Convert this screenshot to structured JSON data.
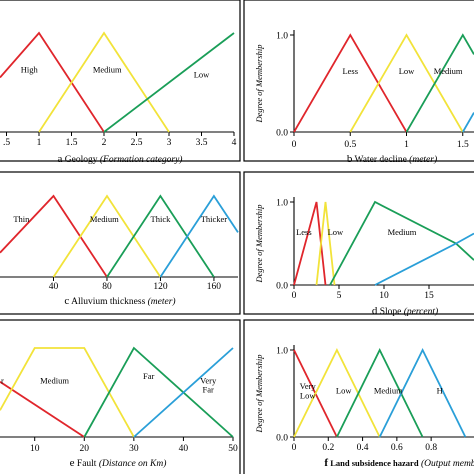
{
  "colors": {
    "red": "#e0262c",
    "yellow": "#f2e33a",
    "green": "#1a9e58",
    "blue": "#2a9fd8"
  },
  "chart_data": [
    {
      "type": "line",
      "panel": "a",
      "caption": "Geology",
      "caption_unit": "(Formation category)",
      "ylabel": "",
      "xlim": [
        0.4,
        4.0
      ],
      "ylim": [
        0,
        1
      ],
      "x_ticks": [
        0.5,
        1,
        1.5,
        2,
        2.5,
        3,
        3.5,
        4
      ],
      "x_tick_labels": [
        ".5",
        "1",
        "1.5",
        "2",
        "2.5",
        "3",
        "3.5",
        "4"
      ],
      "y_ticks": [],
      "series": [
        {
          "name": "High",
          "color": "red",
          "x": [
            0.4,
            1,
            2
          ],
          "y": [
            0.55,
            1,
            0
          ]
        },
        {
          "name": "Medium",
          "color": "yellow",
          "x": [
            1,
            2,
            3
          ],
          "y": [
            0,
            1,
            0
          ]
        },
        {
          "name": "Low",
          "color": "green",
          "x": [
            2,
            4
          ],
          "y": [
            0,
            1
          ]
        }
      ],
      "labels": [
        {
          "text": "High",
          "x": 0.85,
          "y": 0.6
        },
        {
          "text": "Medium",
          "x": 2.05,
          "y": 0.6
        },
        {
          "text": "Low",
          "x": 3.5,
          "y": 0.55
        }
      ]
    },
    {
      "type": "line",
      "panel": "b",
      "caption": "Water decline",
      "caption_unit": "(meter)",
      "ylabel": "Degree of Membership",
      "xlim": [
        0,
        1.6
      ],
      "ylim": [
        0,
        1
      ],
      "x_ticks": [
        0,
        0.5,
        1,
        1.5
      ],
      "x_tick_labels": [
        "0",
        "0.5",
        "1",
        "1.5"
      ],
      "y_ticks": [
        0,
        1
      ],
      "y_tick_labels": [
        "0.0",
        "1.0"
      ],
      "series": [
        {
          "name": "Less",
          "color": "red",
          "x": [
            0,
            0.5,
            1
          ],
          "y": [
            0,
            1,
            0
          ]
        },
        {
          "name": "Low",
          "color": "yellow",
          "x": [
            0.5,
            1,
            1.5
          ],
          "y": [
            0,
            1,
            0
          ]
        },
        {
          "name": "Medium",
          "color": "green",
          "x": [
            1,
            1.5,
            1.6
          ],
          "y": [
            0,
            1,
            0.8
          ]
        },
        {
          "name": "",
          "color": "blue",
          "x": [
            1.5,
            1.6
          ],
          "y": [
            0,
            0.2
          ]
        }
      ],
      "labels": [
        {
          "text": "Less",
          "x": 0.5,
          "y": 0.6
        },
        {
          "text": "Low",
          "x": 1.0,
          "y": 0.6
        },
        {
          "text": "Medium",
          "x": 1.37,
          "y": 0.6
        }
      ]
    },
    {
      "type": "line",
      "panel": "c",
      "caption": "Alluvium thickness",
      "caption_unit": "(meter)",
      "ylabel": "",
      "xlim": [
        0,
        178
      ],
      "ylim": [
        0,
        1
      ],
      "x_ticks": [
        40,
        80,
        120,
        160
      ],
      "x_tick_labels": [
        "40",
        "80",
        "120",
        "160"
      ],
      "y_ticks": [],
      "series": [
        {
          "name": "Thin",
          "color": "red",
          "x": [
            0,
            40,
            80
          ],
          "y": [
            0.3,
            1,
            0
          ]
        },
        {
          "name": "Medium",
          "color": "yellow",
          "x": [
            40,
            80,
            120
          ],
          "y": [
            0,
            1,
            0
          ]
        },
        {
          "name": "Thick",
          "color": "green",
          "x": [
            80,
            120,
            160
          ],
          "y": [
            0,
            1,
            0
          ]
        },
        {
          "name": "Thicker",
          "color": "blue",
          "x": [
            120,
            160,
            178
          ],
          "y": [
            0,
            1,
            0.55
          ]
        }
      ],
      "labels": [
        {
          "text": "Thin",
          "x": 16,
          "y": 0.68
        },
        {
          "text": "Medium",
          "x": 78,
          "y": 0.68
        },
        {
          "text": "Thick",
          "x": 120,
          "y": 0.68
        },
        {
          "text": "Thicker",
          "x": 160,
          "y": 0.68
        }
      ]
    },
    {
      "type": "line",
      "panel": "d",
      "caption": "Slope",
      "caption_unit": "(percent)",
      "ylabel": "Degree of Membership",
      "xlim": [
        0,
        20
      ],
      "ylim": [
        0,
        1
      ],
      "x_ticks": [
        0,
        5,
        10,
        15
      ],
      "x_tick_labels": [
        "0",
        "5",
        "10",
        "15"
      ],
      "y_ticks": [
        0,
        1
      ],
      "y_tick_labels": [
        "0.0",
        "1.0"
      ],
      "series": [
        {
          "name": "Less",
          "color": "red",
          "x": [
            0,
            2.5,
            3.5
          ],
          "y": [
            0,
            1,
            0
          ]
        },
        {
          "name": "Low",
          "color": "yellow",
          "x": [
            2.5,
            3.5,
            4.5
          ],
          "y": [
            0,
            1,
            0
          ]
        },
        {
          "name": "Medium",
          "color": "green",
          "x": [
            4,
            9,
            18,
            20
          ],
          "y": [
            0,
            1,
            0.5,
            0.3
          ]
        },
        {
          "name": "",
          "color": "blue",
          "x": [
            9,
            18,
            20
          ],
          "y": [
            0,
            0.5,
            0.62
          ]
        }
      ],
      "labels": [
        {
          "text": "Less",
          "x": 1.1,
          "y": 0.6
        },
        {
          "text": "Low",
          "x": 4.6,
          "y": 0.6
        },
        {
          "text": "Medium",
          "x": 12.0,
          "y": 0.6
        }
      ]
    },
    {
      "type": "line",
      "panel": "e",
      "caption": "Fault",
      "caption_unit": "(Distance on Km)",
      "ylabel": "",
      "xlim": [
        3,
        50
      ],
      "ylim": [
        0,
        1
      ],
      "x_ticks": [
        10,
        20,
        30,
        40,
        50
      ],
      "x_tick_labels": [
        "10",
        "20",
        "30",
        "40",
        "50"
      ],
      "y_ticks": [],
      "series": [
        {
          "name": "Near",
          "color": "red",
          "x": [
            3,
            20
          ],
          "y": [
            0.62,
            0
          ]
        },
        {
          "name": "Medium",
          "color": "yellow",
          "x": [
            3,
            10,
            20,
            30
          ],
          "y": [
            0.3,
            1,
            1,
            0
          ]
        },
        {
          "name": "Far",
          "color": "green",
          "x": [
            20,
            30,
            50
          ],
          "y": [
            0,
            1,
            0
          ]
        },
        {
          "name": "Very Far",
          "color": "blue",
          "x": [
            30,
            50
          ],
          "y": [
            0,
            1
          ]
        }
      ],
      "labels": [
        {
          "text": "r",
          "x": 3.5,
          "y": 0.6
        },
        {
          "text": "Medium",
          "x": 14,
          "y": 0.6
        },
        {
          "text": "Far",
          "x": 33,
          "y": 0.65
        },
        {
          "text": "Very",
          "x": 45,
          "y": 0.6
        },
        {
          "text": "Far",
          "x": 45,
          "y": 0.5
        }
      ]
    },
    {
      "type": "line",
      "panel": "f",
      "caption": "Land subsidence hazard",
      "caption_unit": "(Output memb",
      "ylabel": "Degree of Membership",
      "xlim": [
        0,
        1.05
      ],
      "ylim": [
        0,
        1
      ],
      "x_ticks": [
        0,
        0.2,
        0.4,
        0.6,
        0.8
      ],
      "x_tick_labels": [
        "0",
        "0.2",
        "0.4",
        "0.6",
        "0.8"
      ],
      "y_ticks": [
        0,
        1
      ],
      "y_tick_labels": [
        "0.0",
        "1.0"
      ],
      "series": [
        {
          "name": "Very Low",
          "color": "red",
          "x": [
            0,
            0.25
          ],
          "y": [
            1,
            0
          ]
        },
        {
          "name": "Low",
          "color": "yellow",
          "x": [
            0,
            0.25,
            0.5
          ],
          "y": [
            0,
            1,
            0
          ]
        },
        {
          "name": "Medium",
          "color": "green",
          "x": [
            0.25,
            0.5,
            0.75
          ],
          "y": [
            0,
            1,
            0
          ]
        },
        {
          "name": "High",
          "color": "blue",
          "x": [
            0.5,
            0.75,
            1.0
          ],
          "y": [
            0,
            1,
            0
          ]
        }
      ],
      "labels": [
        {
          "text": "Very",
          "x": 0.08,
          "y": 0.55
        },
        {
          "text": "Low",
          "x": 0.08,
          "y": 0.44
        },
        {
          "text": "Low",
          "x": 0.29,
          "y": 0.5
        },
        {
          "text": "Medium",
          "x": 0.55,
          "y": 0.5
        },
        {
          "text": "H",
          "x": 0.85,
          "y": 0.5
        }
      ]
    }
  ]
}
